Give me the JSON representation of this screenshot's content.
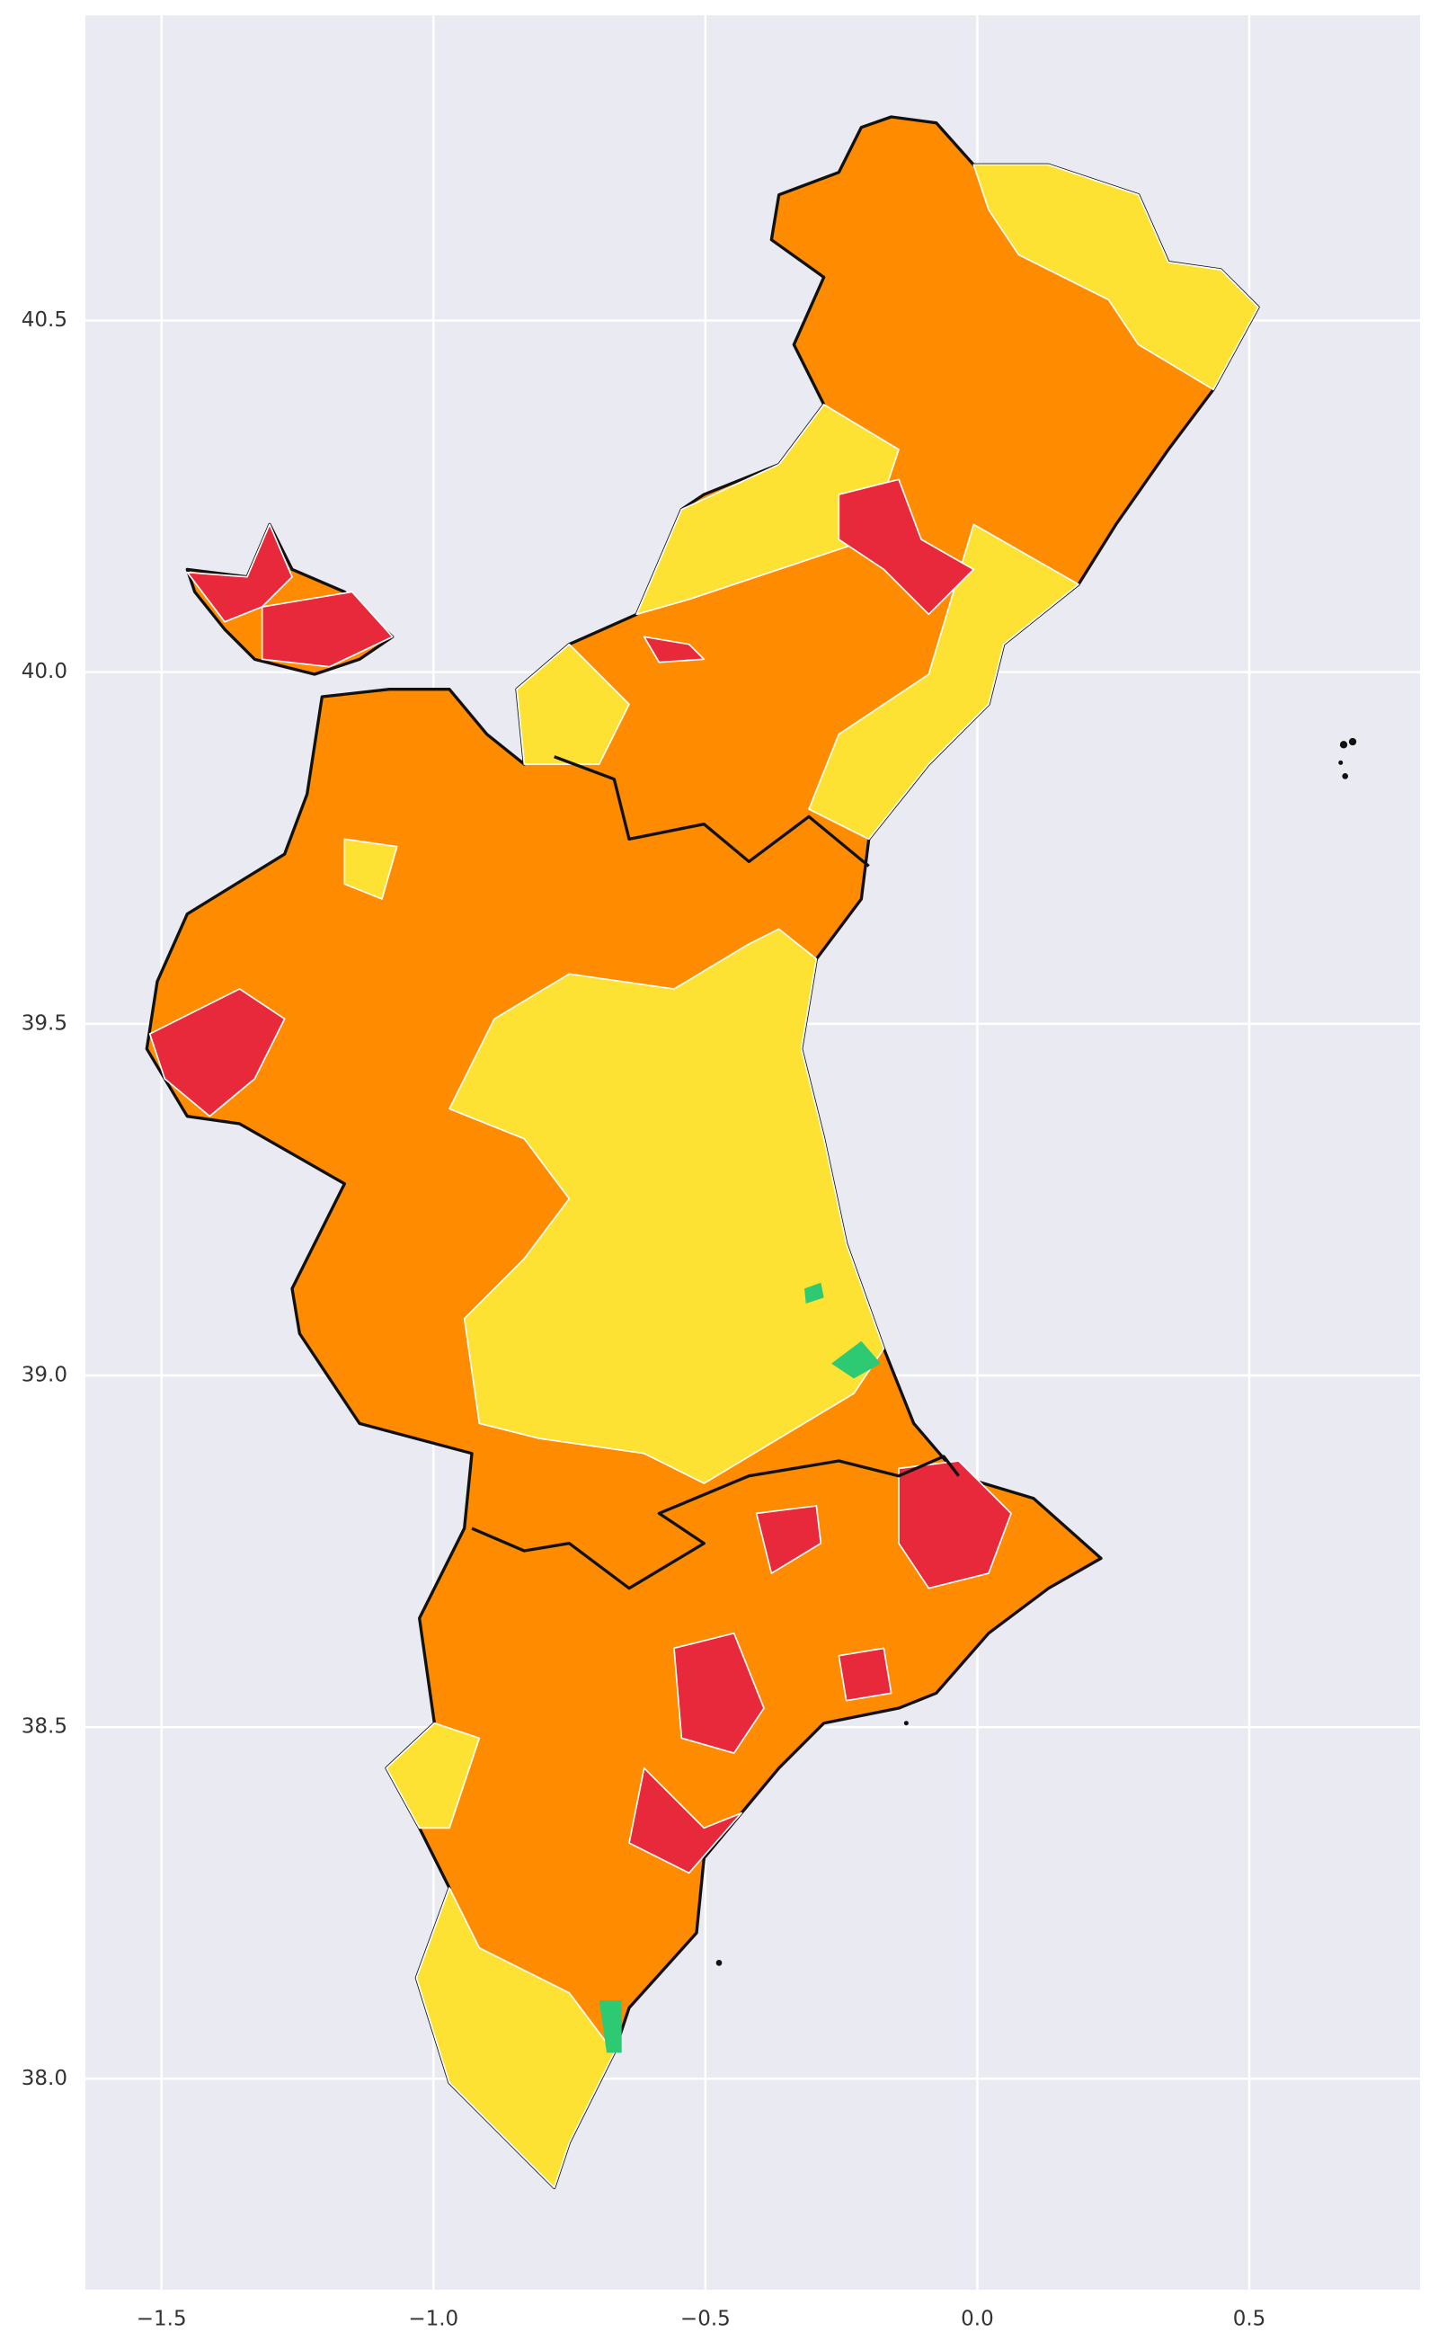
{
  "chart_data": {
    "type": "map",
    "xlim": [
      -1.64,
      0.814
    ],
    "ylim": [
      37.7,
      40.934
    ],
    "xticks": [
      {
        "value": -1.5,
        "label": "−1.5"
      },
      {
        "value": -1.0,
        "label": "−1.0"
      },
      {
        "value": -0.5,
        "label": "−0.5"
      },
      {
        "value": 0,
        "label": "0.0"
      },
      0.5
    ],
    "yticks": [
      {
        "value": 38,
        "label": "38.0"
      },
      38.5,
      {
        "value": 39,
        "label": "39.0"
      },
      39.5,
      {
        "value": 40,
        "label": "40.0"
      },
      40.5
    ],
    "grid": true
  }
}
